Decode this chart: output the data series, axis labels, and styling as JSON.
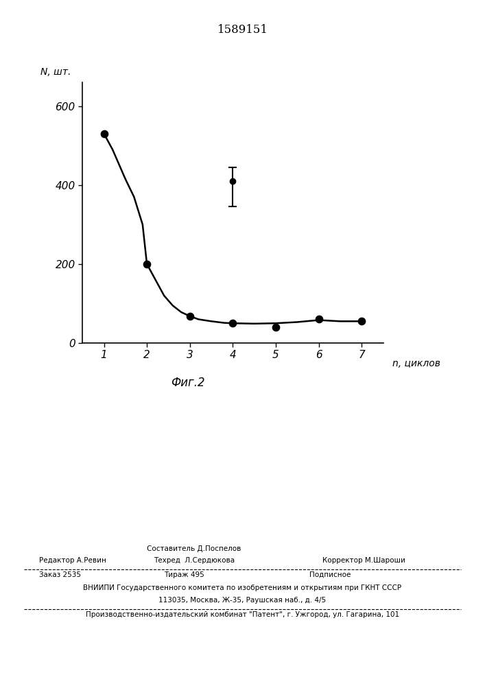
{
  "title": "1589151",
  "xlabel": "n, циклов",
  "ylabel": "N, шт.",
  "fig_label": "Фиг.2",
  "xlim": [
    0.5,
    7.5
  ],
  "ylim": [
    0,
    660
  ],
  "xticks": [
    1,
    2,
    3,
    4,
    5,
    6,
    7
  ],
  "yticks": [
    0,
    200,
    400,
    600
  ],
  "curve_x": [
    1.0,
    1.1,
    1.2,
    1.3,
    1.5,
    1.7,
    1.9,
    2.0,
    2.2,
    2.4,
    2.6,
    2.8,
    3.0,
    3.2,
    3.5,
    3.8,
    4.0,
    4.5,
    5.0,
    5.5,
    6.0,
    6.5,
    7.0
  ],
  "curve_y": [
    530,
    510,
    490,
    465,
    415,
    370,
    300,
    200,
    160,
    120,
    95,
    78,
    68,
    60,
    55,
    51,
    50,
    49,
    50,
    53,
    58,
    55,
    55
  ],
  "main_points_x": [
    1,
    2,
    3,
    4,
    5,
    6,
    7
  ],
  "main_points_y": [
    530,
    200,
    68,
    50,
    40,
    60,
    55
  ],
  "outlier_x": 4,
  "outlier_y": 410,
  "outlier_yerr_up": 35,
  "outlier_yerr_down": 65,
  "background_color": "#ffffff",
  "line_color": "#000000",
  "dot_color": "#000000",
  "text_color": "#000000",
  "footer_sestavitel": "Составитель Д.Поспелов",
  "footer_redaktor": "Редактор А.Ревин",
  "footer_tehred": "Техред  Л.Сердюкова",
  "footer_korrektor": "Корректор М.Шароши",
  "footer_zakaz": "Заказ 2535",
  "footer_tirazh": "Тираж 495",
  "footer_podpisnoe": "Подписное",
  "footer_vniip1": "ВНИИПИ Государственного комитета по изобретениям и открытиям при ГКНТ СССР",
  "footer_vniip2": "113035, Москва, Ж-35, Раушская наб., д. 4/5",
  "footer_proizv": "Производственно-издательский комбинат \"Патент\", г. Ужгород, ул. Гагарина, 101"
}
